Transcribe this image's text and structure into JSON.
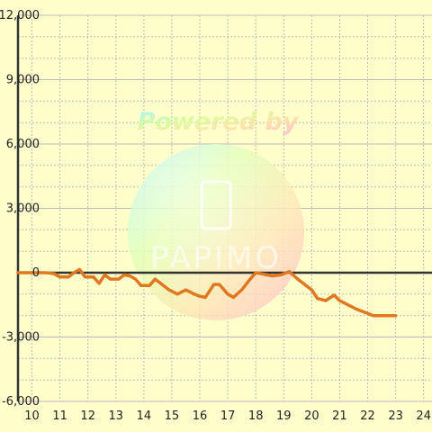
{
  "chart_data": {
    "type": "line",
    "title": "",
    "xlabel": "",
    "ylabel": "",
    "xlim": [
      9.5,
      24.3
    ],
    "ylim": [
      -6000,
      12000
    ],
    "x_ticks": [
      10,
      11,
      12,
      13,
      14,
      15,
      16,
      17,
      18,
      19,
      20,
      21,
      22,
      23,
      24
    ],
    "y_ticks": [
      -6000,
      -3000,
      0,
      3000,
      6000,
      9000,
      12000
    ],
    "x_tick_labels": [
      "10",
      "11",
      "12",
      "13",
      "14",
      "15",
      "16",
      "17",
      "18",
      "19",
      "20",
      "21",
      "22",
      "23",
      "24"
    ],
    "y_tick_labels": [
      "-6,000",
      "-3,000",
      "0",
      "3,000",
      "6,000",
      "9,000",
      "12,000"
    ],
    "grid": true,
    "series_color": "#e07820",
    "series": [
      {
        "name": "",
        "x": [
          9.5,
          10.0,
          10.5,
          10.8,
          11.0,
          11.3,
          11.5,
          11.7,
          11.9,
          12.2,
          12.4,
          12.6,
          12.8,
          13.1,
          13.3,
          13.5,
          13.7,
          13.9,
          14.2,
          14.4,
          14.6,
          14.9,
          15.2,
          15.5,
          15.8,
          16.0,
          16.2,
          16.5,
          16.7,
          17.0,
          17.2,
          17.5,
          17.8,
          18.0,
          18.2,
          18.4,
          18.6,
          18.9,
          19.2,
          19.5,
          19.8,
          20.0,
          20.2,
          20.5,
          20.8,
          21.0,
          21.3,
          21.6,
          22.0,
          22.2,
          22.5,
          22.8,
          23.0
        ],
        "y": [
          0,
          0,
          0,
          -50,
          -200,
          -200,
          0,
          150,
          -200,
          -200,
          -500,
          -100,
          -300,
          -300,
          -100,
          -150,
          -300,
          -600,
          -600,
          -300,
          -500,
          -800,
          -1000,
          -800,
          -1000,
          -1100,
          -1150,
          -550,
          -550,
          -1000,
          -1150,
          -800,
          -300,
          0,
          -50,
          -100,
          -150,
          -100,
          50,
          -300,
          -600,
          -800,
          -1200,
          -1300,
          -1050,
          -1300,
          -1500,
          -1700,
          -1900,
          -2000,
          -2000,
          -2000,
          -2000
        ]
      }
    ]
  },
  "watermark": {
    "line1": "Powered by",
    "brand": "PAPIMO",
    "colors": [
      "#b9eeff",
      "#ffc4d6",
      "#ffe3b0",
      "#d8ffb0",
      "#e0ccff"
    ]
  },
  "colors": {
    "background": "#ffffcc",
    "axis": "#333333",
    "grid": "#bbbbbb"
  }
}
